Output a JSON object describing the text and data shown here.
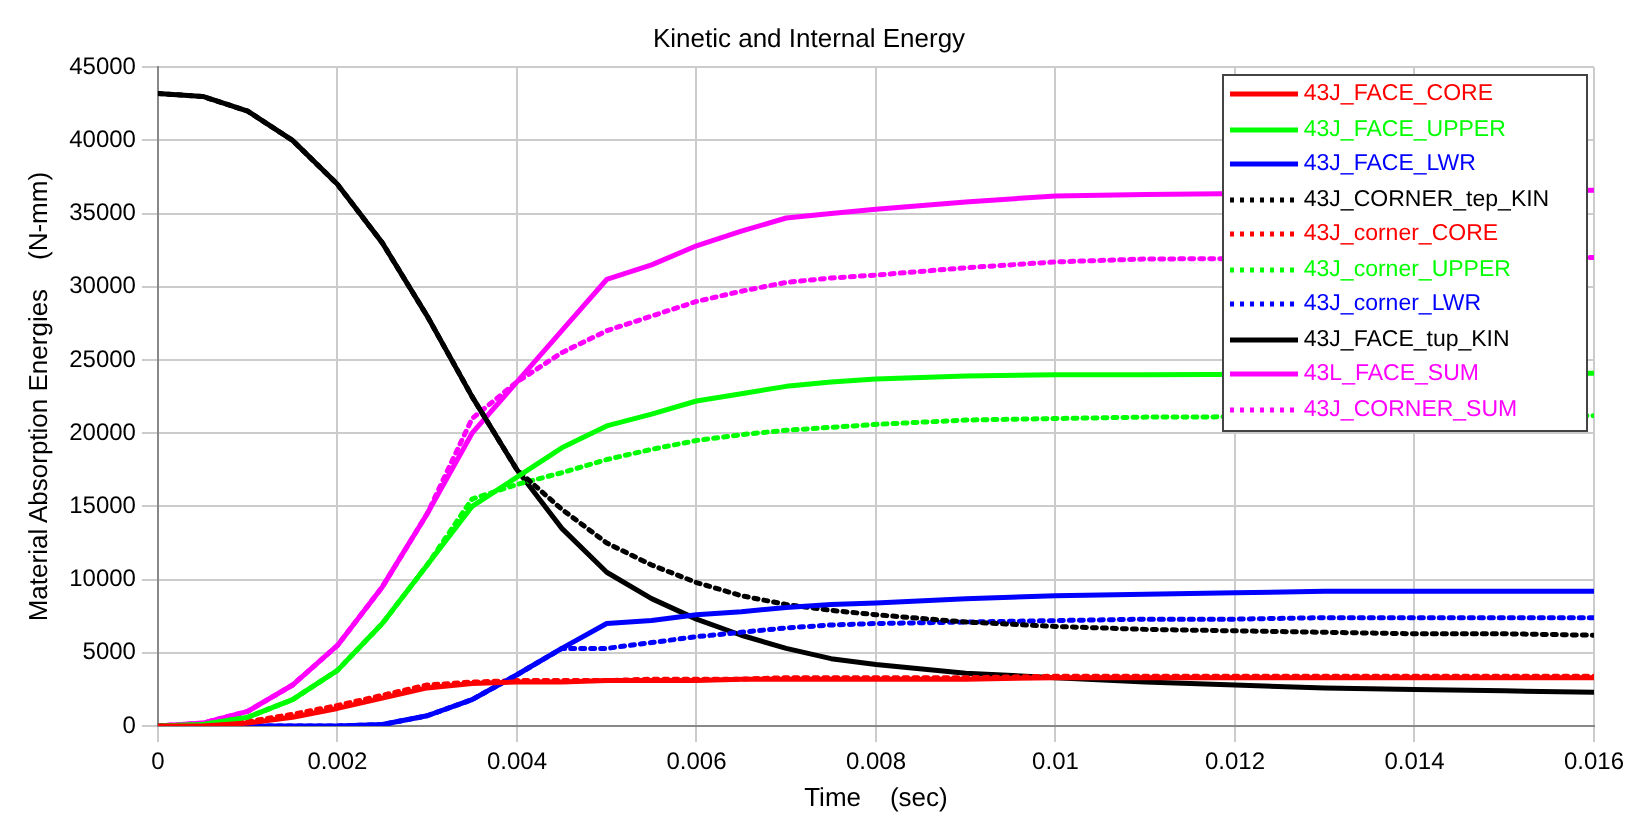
{
  "chart_data": {
    "type": "line",
    "title": "Kinetic and Internal Energy",
    "xlabel": "Time    (sec)",
    "ylabel": "Material Absorption Energies    (N-mm)",
    "x": [
      0,
      0.0005,
      0.001,
      0.0015,
      0.002,
      0.0025,
      0.003,
      0.0035,
      0.004,
      0.0045,
      0.005,
      0.0055,
      0.006,
      0.0065,
      0.007,
      0.0075,
      0.008,
      0.009,
      0.01,
      0.011,
      0.012,
      0.013,
      0.014,
      0.015,
      0.016
    ],
    "series": [
      {
        "name": "43J_FACE_CORE",
        "color": "#ff0000",
        "line_style": "solid",
        "values": [
          0,
          0,
          200,
          600,
          1200,
          1900,
          2600,
          2900,
          3000,
          3000,
          3100,
          3100,
          3100,
          3200,
          3200,
          3200,
          3200,
          3200,
          3300,
          3300,
          3300,
          3300,
          3300,
          3300,
          3300
        ]
      },
      {
        "name": "43J_FACE_UPPER",
        "color": "#00ff00",
        "line_style": "solid",
        "values": [
          0,
          100,
          600,
          1800,
          3800,
          7000,
          11000,
          15000,
          17000,
          19000,
          20500,
          21300,
          22200,
          22700,
          23200,
          23500,
          23700,
          23900,
          24000,
          24000,
          null,
          null,
          null,
          null,
          24100
        ]
      },
      {
        "name": "43J_FACE_LWR",
        "color": "#0000ff",
        "line_style": "solid",
        "values": [
          0,
          0,
          0,
          0,
          0,
          100,
          700,
          1800,
          3500,
          5300,
          7000,
          7200,
          7600,
          7800,
          8100,
          8300,
          8400,
          8700,
          8900,
          9000,
          9100,
          9200,
          9200,
          9200,
          9200
        ]
      },
      {
        "name": "43J_CORNER_tep_KIN",
        "color": "#000000",
        "line_style": "dotted",
        "values": [
          43200,
          43000,
          42000,
          40000,
          37000,
          33000,
          28000,
          22500,
          17500,
          14800,
          12500,
          11000,
          9800,
          8900,
          8300,
          7900,
          7600,
          7100,
          6800,
          6600,
          6500,
          6400,
          6300,
          6300,
          6200
        ]
      },
      {
        "name": "43J_corner_CORE",
        "color": "#ff0000",
        "line_style": "dotted",
        "values": [
          0,
          0,
          300,
          800,
          1400,
          2100,
          2800,
          3000,
          3100,
          3100,
          3100,
          3200,
          3200,
          3200,
          3300,
          3300,
          3300,
          3300,
          3400,
          3400,
          3400,
          3400,
          3400,
          3400,
          3400
        ]
      },
      {
        "name": "43J_corner_UPPER",
        "color": "#00ff00",
        "line_style": "dotted",
        "values": [
          0,
          100,
          600,
          1800,
          3800,
          7000,
          11000,
          15500,
          16500,
          17300,
          18200,
          18900,
          19500,
          19900,
          20200,
          20400,
          20600,
          20900,
          21000,
          21100,
          null,
          null,
          null,
          null,
          21200
        ]
      },
      {
        "name": "43J_corner_LWR",
        "color": "#0000ff",
        "line_style": "dotted",
        "values": [
          0,
          0,
          0,
          0,
          0,
          100,
          700,
          1800,
          3500,
          5300,
          5300,
          5700,
          6100,
          6400,
          6700,
          6900,
          7000,
          7100,
          7200,
          7300,
          7300,
          7400,
          7400,
          7400,
          7400
        ]
      },
      {
        "name": "43J_FACE_tup_KIN",
        "color": "#000000",
        "line_style": "solid",
        "values": [
          43200,
          43000,
          42000,
          40000,
          37000,
          33000,
          28000,
          22500,
          17500,
          13500,
          10500,
          8700,
          7300,
          6200,
          5300,
          4600,
          4200,
          3600,
          3300,
          3000,
          2800,
          2600,
          2500,
          2400,
          2300
        ]
      },
      {
        "name": "43L_FACE_SUM",
        "color": "#ff00ff",
        "line_style": "solid",
        "values": [
          0,
          200,
          1000,
          2800,
          5500,
          9500,
          14500,
          20000,
          23500,
          27000,
          30500,
          31500,
          32800,
          33800,
          34700,
          35000,
          35300,
          35800,
          36200,
          36300,
          null,
          null,
          null,
          null,
          36600
        ]
      },
      {
        "name": "43J_CORNER_SUM",
        "color": "#ff00ff",
        "line_style": "dotted",
        "values": [
          0,
          200,
          1000,
          2800,
          5500,
          9500,
          14500,
          21000,
          23500,
          25500,
          27000,
          28000,
          29000,
          29700,
          30300,
          30600,
          30800,
          31300,
          31700,
          31900,
          null,
          null,
          null,
          null,
          32000
        ]
      }
    ],
    "xlim": [
      0,
      0.016
    ],
    "xticks": [
      0,
      0.002,
      0.004,
      0.006,
      0.008,
      0.01,
      0.012,
      0.014,
      0.016
    ],
    "ylim": [
      0,
      45000
    ],
    "yticks": [
      0,
      5000,
      10000,
      15000,
      20000,
      25000,
      30000,
      35000,
      40000,
      45000
    ],
    "grid": true,
    "legend": "top right",
    "marker": "none"
  }
}
